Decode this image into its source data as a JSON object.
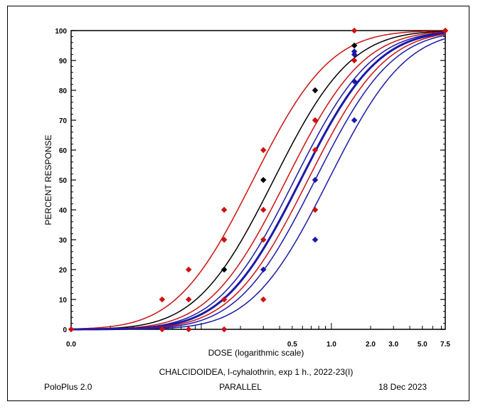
{
  "chart_data": {
    "type": "scatter",
    "xlabel": "DOSE  (logarithmic scale)",
    "ylabel": "PERCENT  RESPONSE",
    "subtitle": "CHALCIDOIDEA, l-cyhalothrin, exp 1 h., 2022-23(I)",
    "x_scale": "log",
    "xlim": [
      0.0,
      7.5
    ],
    "ylim": [
      0,
      100
    ],
    "y_ticks": [
      0,
      10,
      20,
      30,
      40,
      50,
      60,
      70,
      80,
      90,
      100
    ],
    "x_tick_labels": [
      "0.0",
      "0.5",
      "1.0",
      "2.0",
      "3.0",
      "5.0",
      "7.5"
    ],
    "colors": {
      "red": "#cc1111",
      "black": "#000000",
      "blue": "#1a1aa6"
    },
    "series": [
      {
        "color": "red",
        "points": [
          [
            0.01,
            0
          ],
          [
            0.05,
            10
          ],
          [
            0.05,
            0
          ],
          [
            0.08,
            20
          ],
          [
            0.08,
            10
          ],
          [
            0.08,
            0
          ],
          [
            0.15,
            40
          ],
          [
            0.15,
            30
          ],
          [
            0.15,
            10
          ],
          [
            0.15,
            0
          ],
          [
            0.3,
            60
          ],
          [
            0.3,
            40
          ],
          [
            0.3,
            30
          ],
          [
            0.3,
            10
          ],
          [
            0.75,
            70
          ],
          [
            0.75,
            60
          ],
          [
            0.75,
            40
          ],
          [
            1.5,
            100
          ],
          [
            1.5,
            90
          ],
          [
            7.5,
            100
          ]
        ]
      },
      {
        "color": "black",
        "points": [
          [
            0.15,
            20
          ],
          [
            0.3,
            50
          ],
          [
            0.75,
            80
          ],
          [
            1.5,
            95
          ]
        ]
      },
      {
        "color": "blue",
        "points": [
          [
            0.3,
            20
          ],
          [
            0.75,
            50
          ],
          [
            0.75,
            30
          ],
          [
            1.5,
            93
          ],
          [
            1.5,
            92
          ],
          [
            1.5,
            83
          ],
          [
            1.5,
            70
          ]
        ]
      }
    ],
    "fitted_curves": [
      {
        "color": "red",
        "ld50": 0.25,
        "slope": 2.15,
        "width": 1.5
      },
      {
        "color": "black",
        "ld50": 0.36,
        "slope": 2.15,
        "width": 1.5
      },
      {
        "color": "red",
        "ld50": 0.45,
        "slope": 2.15,
        "width": 1.5
      },
      {
        "color": "blue",
        "ld50": 0.52,
        "slope": 2.15,
        "width": 1.5
      },
      {
        "color": "blue",
        "ld50": 0.58,
        "slope": 2.15,
        "width": 3
      },
      {
        "color": "red",
        "ld50": 0.66,
        "slope": 2.15,
        "width": 1.5
      },
      {
        "color": "blue",
        "ld50": 0.75,
        "slope": 2.15,
        "width": 1.5
      },
      {
        "color": "blue",
        "ld50": 0.95,
        "slope": 2.15,
        "width": 1.5
      }
    ]
  },
  "footer": {
    "left": "PoloPlus 2.0",
    "center": "PARALLEL",
    "right": "18 Dec 2023"
  }
}
